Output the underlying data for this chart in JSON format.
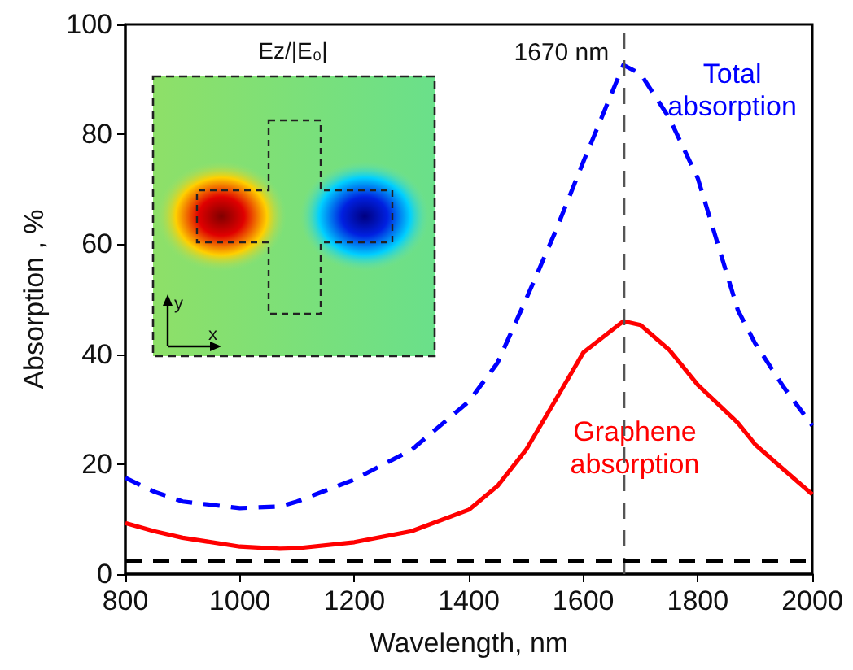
{
  "chart_data": {
    "type": "line",
    "xlabel": "Wavelength, nm",
    "ylabel": "Absorption , %",
    "x": [
      800,
      850,
      900,
      1000,
      1070,
      1100,
      1200,
      1300,
      1400,
      1450,
      1500,
      1550,
      1600,
      1670,
      1700,
      1750,
      1800,
      1870,
      1900,
      1950,
      2000
    ],
    "series": [
      {
        "name": "Total absorption",
        "color": "#0000ff",
        "line_style": "dashed",
        "values": [
          17.5,
          15,
          13.2,
          12,
          12.3,
          13.2,
          17.2,
          22.6,
          31.4,
          38.4,
          50,
          62,
          75,
          92.6,
          91,
          83,
          72,
          48,
          42,
          34,
          27
        ]
      },
      {
        "name": "Graphene absorption",
        "color": "#ff0000",
        "line_style": "solid",
        "values": [
          9.3,
          7.8,
          6.6,
          5.0,
          4.6,
          4.7,
          5.8,
          7.8,
          11.7,
          16,
          22.6,
          31.4,
          40.3,
          46,
          45.3,
          40.8,
          34.4,
          27.5,
          23.6,
          19,
          14.5
        ]
      }
    ],
    "xlim": [
      800,
      2000
    ],
    "xticks": [
      800,
      1000,
      1200,
      1400,
      1600,
      1800,
      2000
    ],
    "ylim": [
      0,
      100
    ],
    "yticks": [
      0,
      20,
      40,
      60,
      80,
      100
    ],
    "ref_lines": [
      {
        "axis": "x",
        "value": 1670,
        "label": "1670 nm",
        "color": "#555555",
        "line_style": "dashed"
      },
      {
        "axis": "y",
        "value": 2.3,
        "color": "#000000",
        "line_style": "dashed"
      }
    ],
    "annotations": [
      "Ez/|E₀|",
      "y",
      "x"
    ],
    "grid": false,
    "legend": false,
    "marker": "none"
  }
}
